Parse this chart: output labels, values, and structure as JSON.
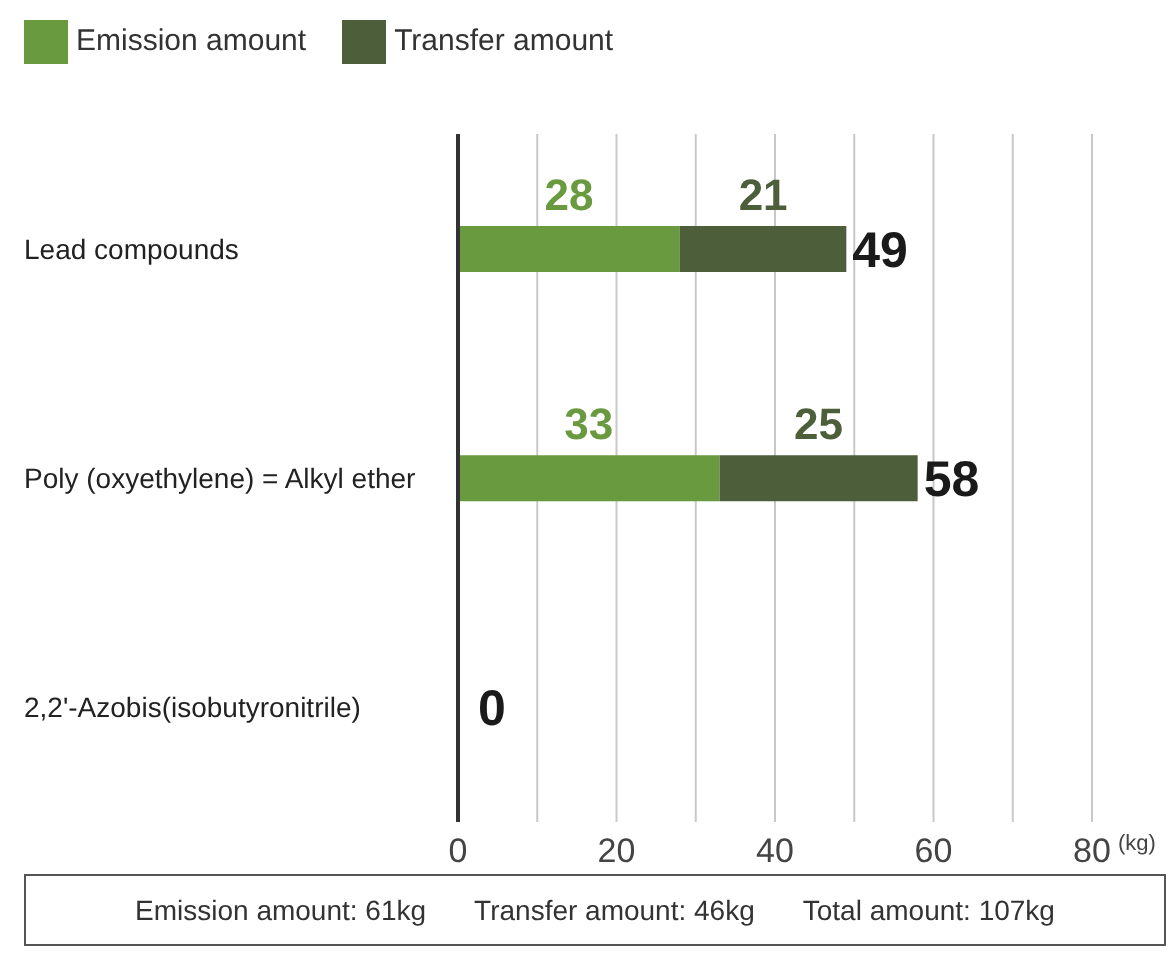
{
  "chart_data": {
    "type": "bar",
    "orientation": "horizontal",
    "stacked": true,
    "categories": [
      "Lead compounds",
      "Poly (oxyethylene) = Alkyl ether",
      "2,2'-Azobis(isobutyronitrile)"
    ],
    "series": [
      {
        "name": "Emission amount",
        "color": "#6a9a3f",
        "values": [
          28,
          33,
          0
        ],
        "value_labels": [
          "28",
          "33",
          null
        ]
      },
      {
        "name": "Transfer amount",
        "color": "#4d5e3b",
        "values": [
          21,
          25,
          0
        ],
        "value_labels": [
          "21",
          "25",
          null
        ]
      }
    ],
    "totals": [
      "49",
      "58",
      "0"
    ],
    "xlabel": "(kg)",
    "xlim": [
      0,
      80
    ],
    "xticks": [
      0,
      {
        "value": 10,
        "label": null
      },
      20,
      {
        "value": 30,
        "label": null
      },
      40,
      {
        "value": 50,
        "label": null
      },
      60,
      {
        "value": 70,
        "label": null
      },
      80
    ],
    "grid": "x",
    "legend": "top left",
    "annotations": [
      "Emission amount: 61kg",
      "Transfer amount: 46kg",
      "Total amount: 107kg"
    ]
  }
}
